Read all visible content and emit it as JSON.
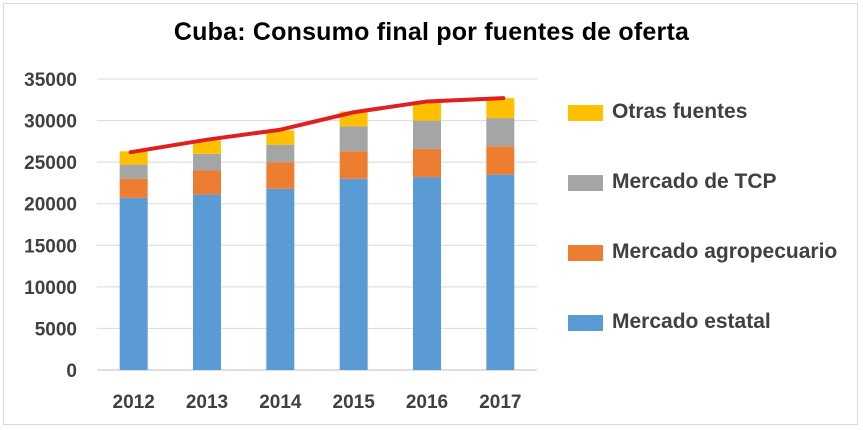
{
  "chart_data": {
    "type": "bar",
    "stacked": true,
    "title": "Cuba: Consumo final por fuentes de oferta",
    "xlabel": "",
    "ylabel": "",
    "categories": [
      "2012",
      "2013",
      "2014",
      "2015",
      "2016",
      "2017"
    ],
    "ylim": [
      0,
      35000
    ],
    "yticks": [
      "0",
      "5000",
      "10000",
      "15000",
      "20000",
      "25000",
      "30000",
      "35000"
    ],
    "grid": true,
    "legend_position": "right",
    "series": [
      {
        "name": "Mercado estatal",
        "color": "#5B9BD5",
        "values": [
          20700,
          21100,
          21800,
          23000,
          23200,
          23500
        ]
      },
      {
        "name": "Mercado agropecuario",
        "color": "#ED7D31",
        "values": [
          2300,
          2900,
          3200,
          3300,
          3400,
          3400
        ]
      },
      {
        "name": "Mercado de TCP",
        "color": "#A5A5A5",
        "values": [
          1700,
          2000,
          2100,
          3000,
          3400,
          3400
        ]
      },
      {
        "name": "Otras fuentes",
        "color": "#FFC000",
        "values": [
          1600,
          1600,
          1700,
          1800,
          2200,
          2400
        ]
      }
    ],
    "trend_line": {
      "color": "#E02020",
      "values": [
        26200,
        27700,
        28900,
        31000,
        32300,
        32700
      ]
    }
  }
}
